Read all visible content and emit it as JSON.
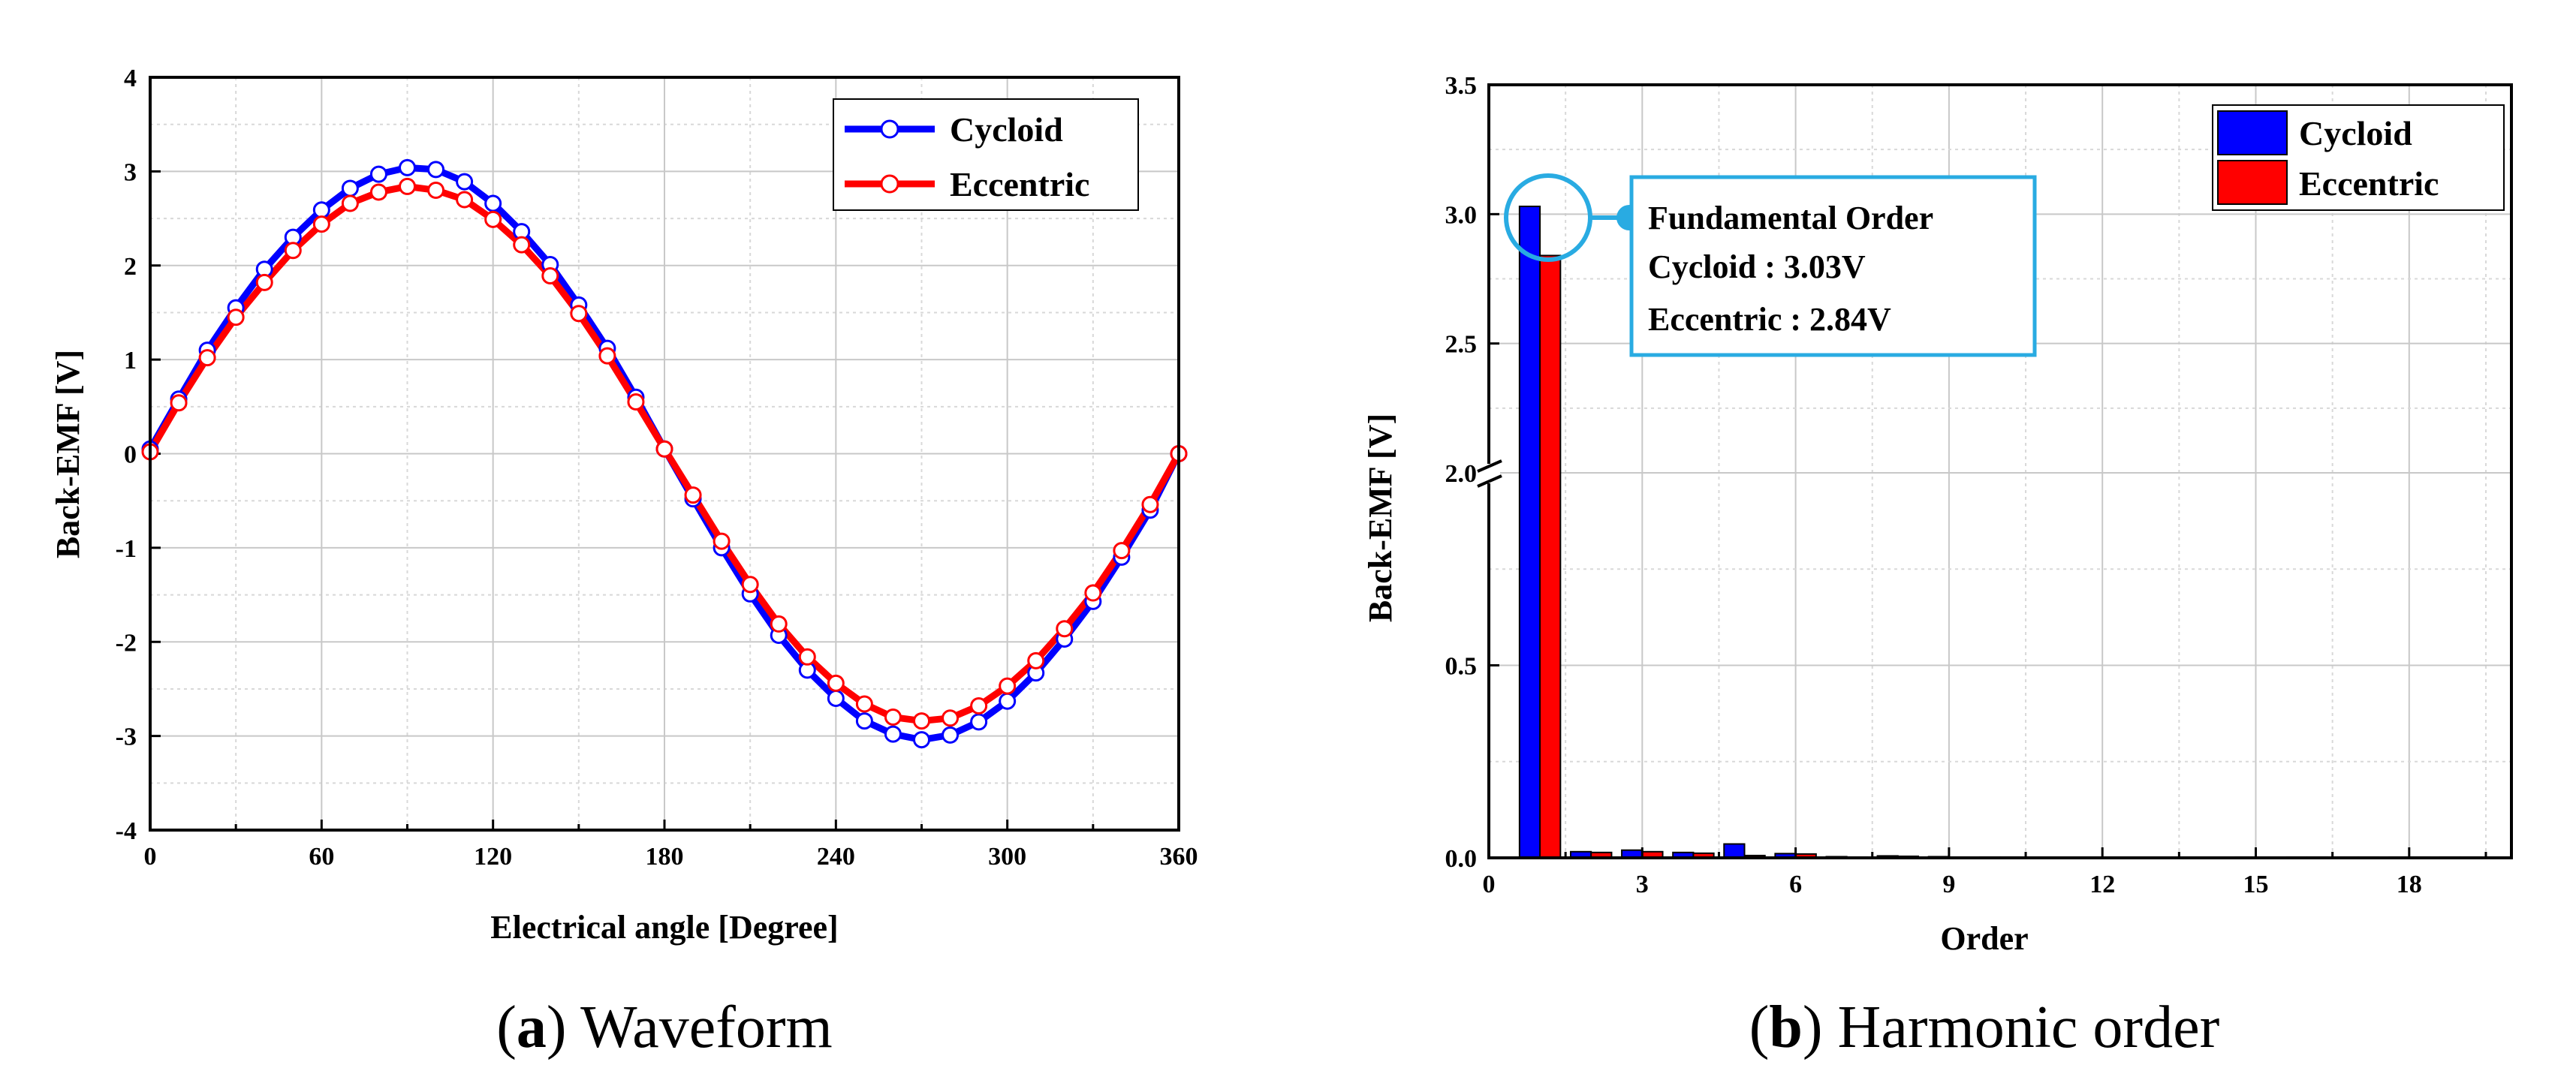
{
  "colors": {
    "cycloid": "#0000ff",
    "eccentric": "#ff0000",
    "annotation": "#29abe2"
  },
  "captions": {
    "a": {
      "letter": "a",
      "text": "Waveform"
    },
    "b": {
      "letter": "b",
      "text": "Harmonic order"
    }
  },
  "chart_data": [
    {
      "id": "a",
      "type": "line",
      "xlabel": "Electrical angle [Degree]",
      "ylabel": "Back-EMF [V]",
      "xlim": [
        0,
        360
      ],
      "ylim": [
        -4,
        4
      ],
      "xticks": [
        0,
        60,
        120,
        180,
        240,
        300,
        360
      ],
      "yticks": [
        -4,
        -3,
        -2,
        -1,
        0,
        1,
        2,
        3,
        4
      ],
      "grid": true,
      "legend": "top-right",
      "x": [
        0,
        10,
        20,
        30,
        40,
        50,
        60,
        70,
        80,
        90,
        100,
        110,
        120,
        130,
        140,
        150,
        160,
        170,
        180,
        190,
        200,
        210,
        220,
        230,
        240,
        250,
        260,
        270,
        280,
        290,
        300,
        310,
        320,
        330,
        340,
        350,
        360
      ],
      "series": [
        {
          "name": "Cycloid",
          "values": [
            0.05,
            0.58,
            1.1,
            1.55,
            1.96,
            2.3,
            2.59,
            2.82,
            2.97,
            3.04,
            3.02,
            2.89,
            2.66,
            2.36,
            2.01,
            1.58,
            1.12,
            0.6,
            0.05,
            -0.48,
            -1.0,
            -1.49,
            -1.93,
            -2.3,
            -2.6,
            -2.84,
            -2.98,
            -3.04,
            -2.99,
            -2.85,
            -2.63,
            -2.33,
            -1.97,
            -1.57,
            -1.1,
            -0.6,
            0.0
          ]
        },
        {
          "name": "Eccentric",
          "values": [
            0.02,
            0.54,
            1.02,
            1.45,
            1.82,
            2.16,
            2.44,
            2.66,
            2.78,
            2.84,
            2.8,
            2.7,
            2.49,
            2.22,
            1.89,
            1.49,
            1.04,
            0.55,
            0.05,
            -0.44,
            -0.93,
            -1.39,
            -1.81,
            -2.16,
            -2.44,
            -2.66,
            -2.8,
            -2.84,
            -2.81,
            -2.68,
            -2.47,
            -2.2,
            -1.86,
            -1.48,
            -1.03,
            -0.54,
            0.0
          ]
        }
      ]
    },
    {
      "id": "b",
      "type": "bar",
      "xlabel": "Order",
      "ylabel": "Back-EMF [V]",
      "xlim": [
        0,
        20
      ],
      "xticks": [
        0,
        3,
        6,
        9,
        12,
        15,
        18
      ],
      "yticks": [
        0.0,
        0.5,
        2.0,
        2.5,
        3.0,
        3.5
      ],
      "y_break": [
        1.0,
        2.0
      ],
      "grid": true,
      "legend": "top-right",
      "categories": [
        1,
        2,
        3,
        4,
        5,
        6,
        7,
        8,
        9,
        10,
        11,
        12,
        13,
        14,
        15,
        16,
        17,
        18,
        19
      ],
      "series": [
        {
          "name": "Cycloid",
          "values": [
            3.03,
            0.016,
            0.02,
            0.014,
            0.036,
            0.011,
            0.003,
            0.005,
            0.003,
            0.002,
            0.001,
            0.001,
            0.001,
            0.001,
            0.002,
            0.002,
            0.002,
            0.002,
            0.002
          ]
        },
        {
          "name": "Eccentric",
          "values": [
            2.84,
            0.014,
            0.016,
            0.012,
            0.006,
            0.01,
            0.002,
            0.004,
            0.002,
            0.002,
            0.001,
            0.001,
            0.001,
            0.001,
            0.001,
            0.002,
            0.002,
            0.002,
            0.002
          ]
        }
      ],
      "annotation": {
        "title": "Fundamental Order",
        "line1": "Cycloid : 3.03V",
        "line2": "Eccentric : 2.84V"
      }
    }
  ]
}
